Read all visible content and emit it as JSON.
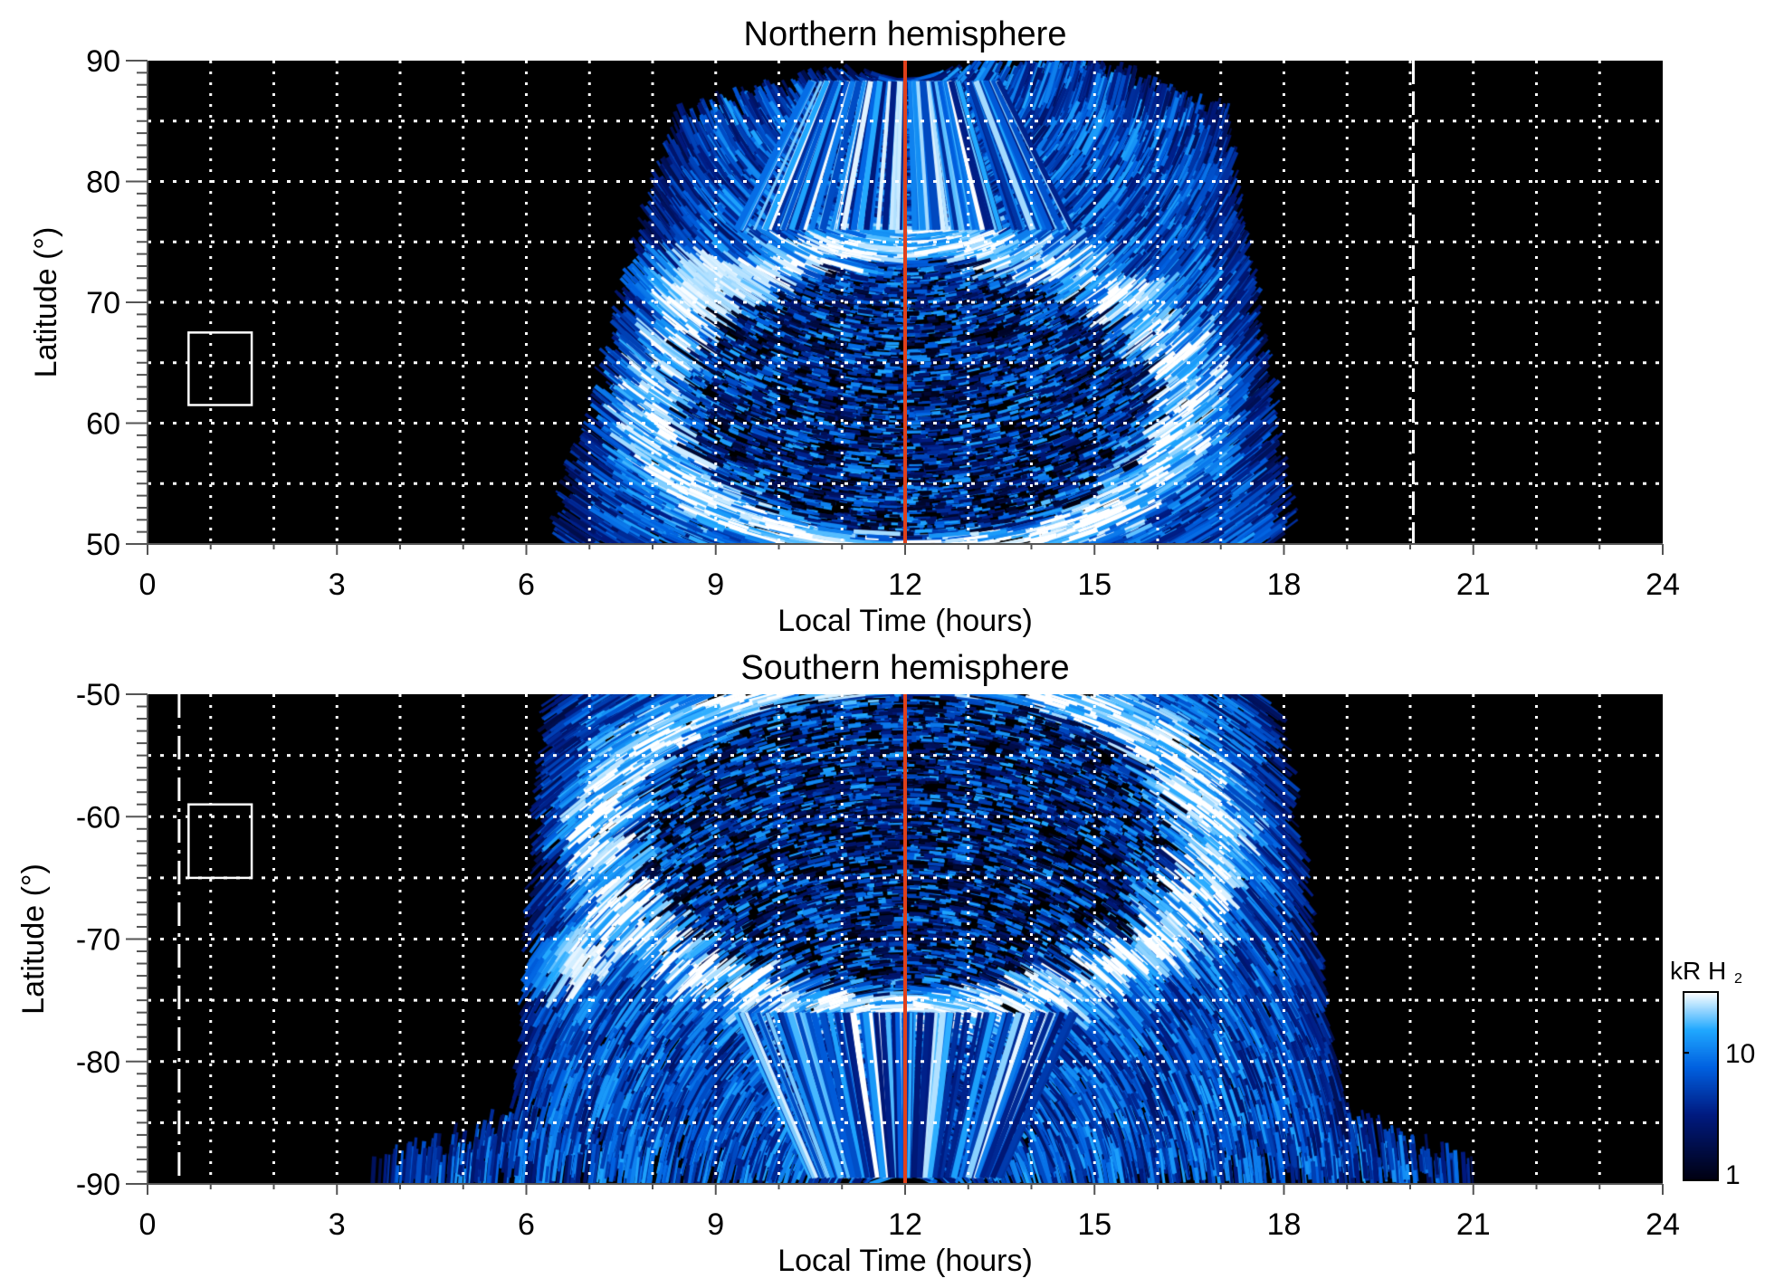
{
  "chart_data": [
    {
      "type": "heatmap",
      "title": "Northern hemisphere",
      "xlabel": "Local Time (hours)",
      "ylabel": "Latitude (°)",
      "xlim": [
        0,
        24
      ],
      "ylim": [
        50,
        90
      ],
      "xticks": [
        0,
        3,
        6,
        9,
        12,
        15,
        18,
        21,
        24
      ],
      "yticks": [
        50,
        60,
        70,
        80,
        90
      ],
      "grid": true,
      "background": "#000000",
      "markers": {
        "noon_line": {
          "x": 12,
          "color": "#e0401a",
          "style": "solid"
        },
        "vertical_line": {
          "x": 20.05,
          "color": "#ffffff",
          "style": "dashed"
        },
        "box": {
          "x": [
            0.65,
            1.65
          ],
          "y": [
            61.5,
            67.5
          ],
          "color": "#ffffff"
        }
      }
    },
    {
      "type": "heatmap",
      "title": "Southern hemisphere",
      "xlabel": "Local Time (hours)",
      "ylabel": "Latitude (°)",
      "xlim": [
        0,
        24
      ],
      "ylim": [
        -90,
        -50
      ],
      "xticks": [
        0,
        3,
        6,
        9,
        12,
        15,
        18,
        21,
        24
      ],
      "yticks": [
        -90,
        -80,
        -70,
        -60,
        -50
      ],
      "grid": true,
      "background": "#000000",
      "markers": {
        "noon_line": {
          "x": 12,
          "color": "#e0401a",
          "style": "solid"
        },
        "vertical_line": {
          "x": 0.5,
          "color": "#ffffff",
          "style": "dash-dot"
        },
        "box": {
          "x": [
            0.65,
            1.65
          ],
          "y": [
            -65,
            -59
          ],
          "color": "#ffffff"
        }
      }
    }
  ],
  "colorbar": {
    "label": "kR H",
    "label_sub": "2",
    "scale": "log",
    "range": [
      1,
      30
    ],
    "ticks": [
      {
        "value": 1,
        "label": "1"
      },
      {
        "value": 10,
        "label": "10"
      }
    ],
    "colors": [
      "#000010",
      "#001a80",
      "#0060e0",
      "#20a8ff",
      "#ffffff"
    ]
  }
}
